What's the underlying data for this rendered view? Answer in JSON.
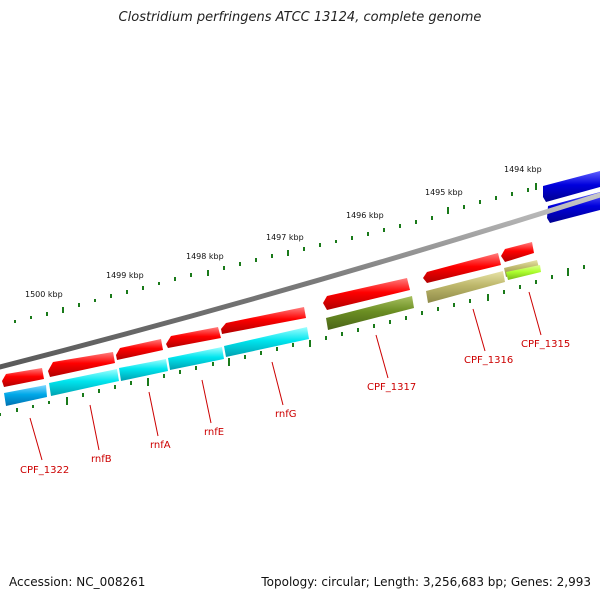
{
  "title": "Clostridium perfringens ATCC 13124, complete genome",
  "footer": {
    "accession": "Accession: NC_008261",
    "summary": "Topology: circular; Length: 3,256,683 bp; Genes: 2,993"
  },
  "kbp_labels": [
    "1500 kbp",
    "1499 kbp",
    "1498 kbp",
    "1497 kbp",
    "1496 kbp",
    "1495 kbp",
    "1494 kbp"
  ],
  "gene_labels": [
    "CPF_1322",
    "rnfB",
    "rnfA",
    "rnfE",
    "rnfG",
    "CPF_1317",
    "CPF_1316",
    "CPF_1315"
  ],
  "colors": {
    "backbone": "#8a8a8a",
    "cds": "#ff0000",
    "cyan": "#00e5ee",
    "azure": "#00a8e8",
    "olive": "#6b8e23",
    "khaki": "#bdb76b",
    "lime": "#adff2f",
    "blue": "#0000dd",
    "tick": "#1a7a1a",
    "label": "#cc0000"
  }
}
